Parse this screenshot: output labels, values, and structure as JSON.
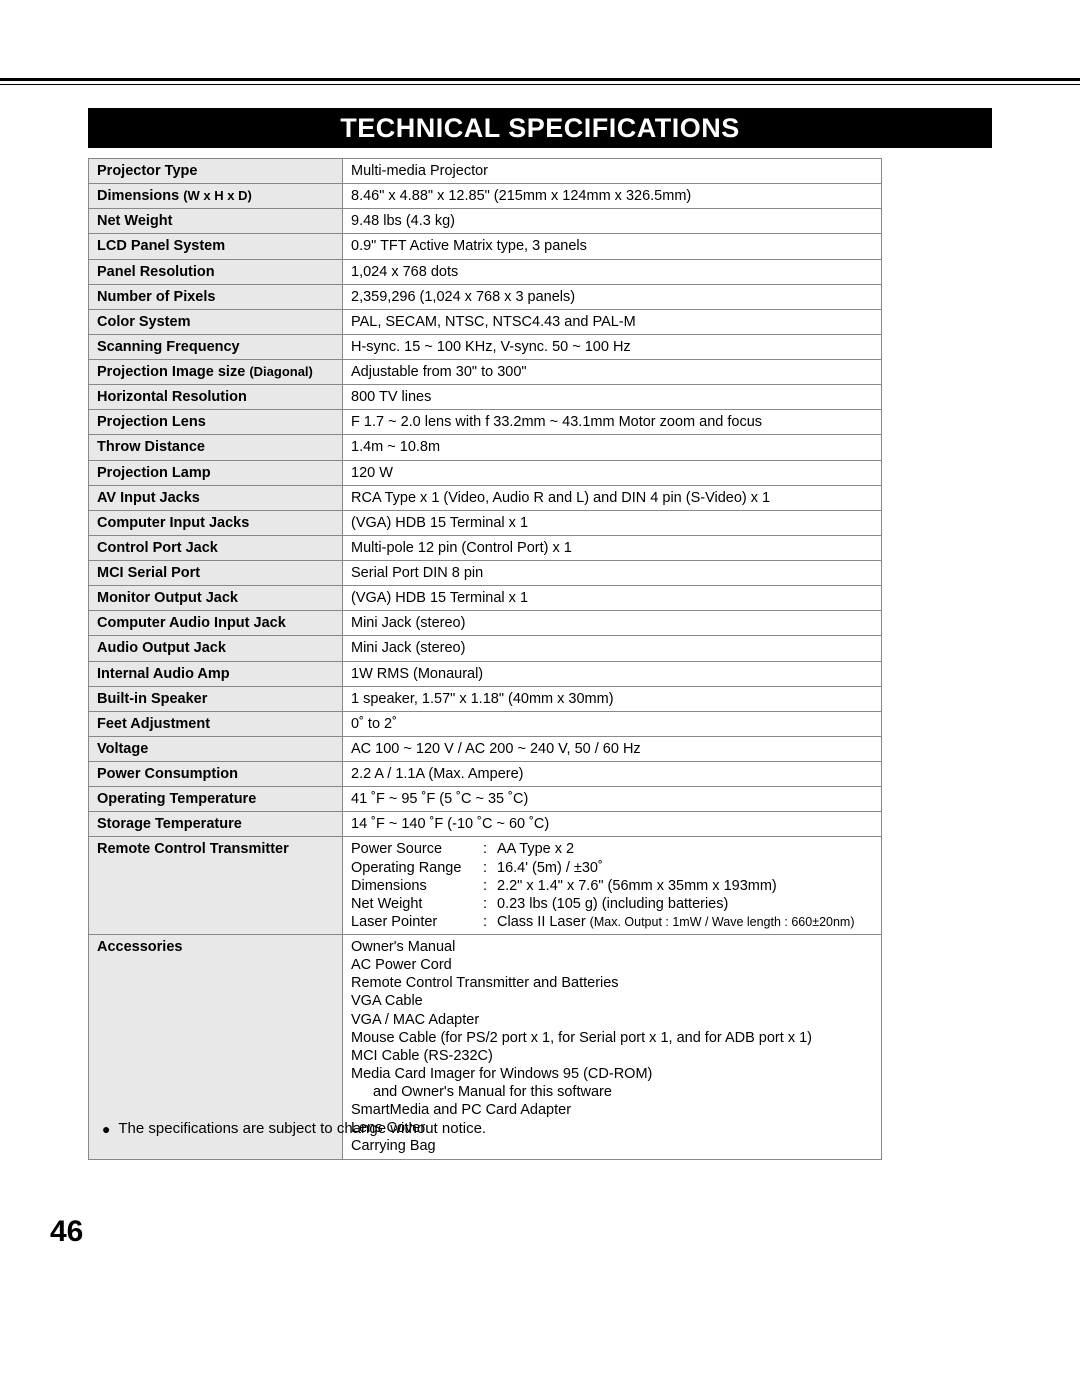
{
  "title": "TECHNICAL SPECIFICATIONS",
  "rows": [
    {
      "label": "Projector Type",
      "value": "Multi-media Projector"
    },
    {
      "label": "Dimensions",
      "sublabel": "(W x H x D)",
      "value": "8.46\" x 4.88\" x 12.85\" (215mm x 124mm x 326.5mm)"
    },
    {
      "label": "Net Weight",
      "value": "9.48 lbs (4.3 kg)"
    },
    {
      "label": "LCD Panel System",
      "value": "0.9\" TFT Active Matrix type, 3 panels"
    },
    {
      "label": "Panel Resolution",
      "value": "1,024 x 768 dots"
    },
    {
      "label": "Number of Pixels",
      "value": "2,359,296 (1,024 x 768 x 3 panels)"
    },
    {
      "label": "Color System",
      "value": "PAL, SECAM, NTSC, NTSC4.43 and PAL-M"
    },
    {
      "label": "Scanning Frequency",
      "value": "H-sync. 15 ~ 100 KHz, V-sync. 50 ~ 100 Hz"
    },
    {
      "label": "Projection Image size",
      "sublabel": "(Diagonal)",
      "value": "Adjustable from 30\" to 300\""
    },
    {
      "label": "Horizontal Resolution",
      "value": "800 TV lines"
    },
    {
      "label": "Projection Lens",
      "value": "F 1.7 ~ 2.0 lens with f 33.2mm ~ 43.1mm Motor zoom and focus"
    },
    {
      "label": "Throw Distance",
      "value": "1.4m ~ 10.8m"
    },
    {
      "label": "Projection Lamp",
      "value": "120 W"
    },
    {
      "label": "AV Input Jacks",
      "value": "RCA Type  x 1 (Video, Audio R and L) and DIN 4 pin (S-Video) x 1"
    },
    {
      "label": "Computer Input Jacks",
      "value": "(VGA) HDB 15 Terminal x 1"
    },
    {
      "label": "Control Port Jack",
      "value": "Multi-pole 12 pin (Control Port) x 1"
    },
    {
      "label": "MCI Serial Port",
      "value": "Serial Port DIN 8 pin"
    },
    {
      "label": "Monitor Output Jack",
      "value": "(VGA) HDB 15 Terminal x 1"
    },
    {
      "label": "Computer Audio Input Jack",
      "value": "Mini Jack (stereo)"
    },
    {
      "label": "Audio Output Jack",
      "value": "Mini Jack (stereo)"
    },
    {
      "label": "Internal Audio Amp",
      "value": "1W RMS (Monaural)"
    },
    {
      "label": "Built-in Speaker",
      "value": "1 speaker, 1.57\" x 1.18\" (40mm x 30mm)"
    },
    {
      "label": "Feet Adjustment",
      "value": "0˚ to 2˚"
    },
    {
      "label": "Voltage",
      "value": "AC 100 ~ 120 V / AC 200 ~ 240 V, 50 / 60 Hz"
    },
    {
      "label": "Power Consumption",
      "value": "2.2 A / 1.1A (Max. Ampere)"
    },
    {
      "label": "Operating Temperature",
      "value": "41 ˚F ~ 95 ˚F (5 ˚C ~ 35 ˚C)"
    },
    {
      "label": "Storage Temperature",
      "value": "14 ˚F ~ 140 ˚F (-10 ˚C ~ 60 ˚C)"
    }
  ],
  "remote": {
    "label": "Remote Control Transmitter",
    "items": [
      {
        "k": "Power Source",
        "v": "AA Type x 2"
      },
      {
        "k": "Operating Range",
        "v": "16.4' (5m) / ±30˚"
      },
      {
        "k": "Dimensions",
        "v": "2.2\" x 1.4\" x 7.6\" (56mm x 35mm x 193mm)"
      },
      {
        "k": "Net Weight",
        "v": "0.23 lbs (105 g) (including batteries)"
      },
      {
        "k": "Laser Pointer",
        "v": "Class II Laser",
        "vsmall": "(Max. Output : 1mW / Wave length : 660±20nm)"
      }
    ]
  },
  "accessories": {
    "label": "Accessories",
    "items": [
      "Owner's Manual",
      "AC Power Cord",
      "Remote Control Transmitter and Batteries",
      "VGA Cable",
      "VGA / MAC Adapter",
      "Mouse Cable (for PS/2 port x 1, for Serial port x 1, and for ADB port x 1)",
      "MCI Cable (RS-232C)",
      "Media Card Imager for Windows 95 (CD-ROM)"
    ],
    "indent_item": "and Owner's Manual for this software",
    "items2": [
      "SmartMedia and PC Card Adapter",
      "Lens Cover",
      "Carrying Bag"
    ]
  },
  "footnote": "The specifications are subject to change without notice.",
  "page_number": "46"
}
